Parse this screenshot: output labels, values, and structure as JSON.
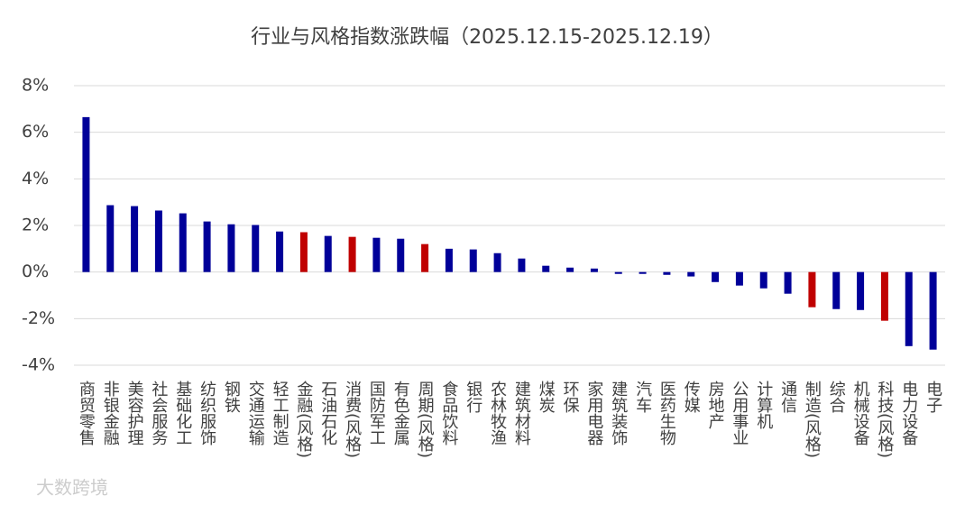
{
  "chart_data": {
    "type": "bar",
    "title": "行业与风格指数涨跌幅（2025.12.15-2025.12.19）",
    "categories": [
      "商贸零售",
      "非银金融",
      "美容护理",
      "社会服务",
      "基础化工",
      "纺织服饰",
      "钢铁",
      "交通运输",
      "轻工制造",
      "金融(风格)",
      "石油石化",
      "消费(风格)",
      "国防军工",
      "有色金属",
      "周期(风格)",
      "食品饮料",
      "银行",
      "农林牧渔",
      "建筑材料",
      "煤炭",
      "环保",
      "家用电器",
      "建筑装饰",
      "汽车",
      "医药生物",
      "传媒",
      "房地产",
      "公用事业",
      "计算机",
      "通信",
      "制造(风格)",
      "综合",
      "机械设备",
      "科技(风格)",
      "电力设备",
      "电子"
    ],
    "values": [
      6.65,
      2.87,
      2.83,
      2.64,
      2.52,
      2.17,
      2.05,
      2.02,
      1.74,
      1.71,
      1.55,
      1.51,
      1.47,
      1.43,
      1.2,
      1.0,
      0.97,
      0.81,
      0.58,
      0.27,
      0.19,
      0.15,
      -0.08,
      -0.08,
      -0.12,
      -0.19,
      -0.43,
      -0.58,
      -0.7,
      -0.93,
      -1.51,
      -1.59,
      -1.63,
      -2.09,
      -3.18,
      -3.33
    ],
    "colors": [
      "#000099",
      "#000099",
      "#000099",
      "#000099",
      "#000099",
      "#000099",
      "#000099",
      "#000099",
      "#000099",
      "#c00000",
      "#000099",
      "#c00000",
      "#000099",
      "#000099",
      "#c00000",
      "#000099",
      "#000099",
      "#000099",
      "#000099",
      "#000099",
      "#000099",
      "#000099",
      "#000099",
      "#000099",
      "#000099",
      "#000099",
      "#000099",
      "#000099",
      "#000099",
      "#000099",
      "#c00000",
      "#000099",
      "#000099",
      "#c00000",
      "#000099",
      "#000099"
    ],
    "ylim": [
      -4,
      8
    ],
    "yticks": [
      {
        "value": -4,
        "label": "-4%"
      },
      {
        "value": -2,
        "label": "-2%"
      },
      {
        "value": 0,
        "label": "0%"
      },
      {
        "value": 2,
        "label": "2%"
      },
      {
        "value": 4,
        "label": "4%"
      },
      {
        "value": 6,
        "label": "6%"
      },
      {
        "value": 8,
        "label": "8%"
      }
    ],
    "grid": true,
    "watermark": "大数跨境"
  }
}
